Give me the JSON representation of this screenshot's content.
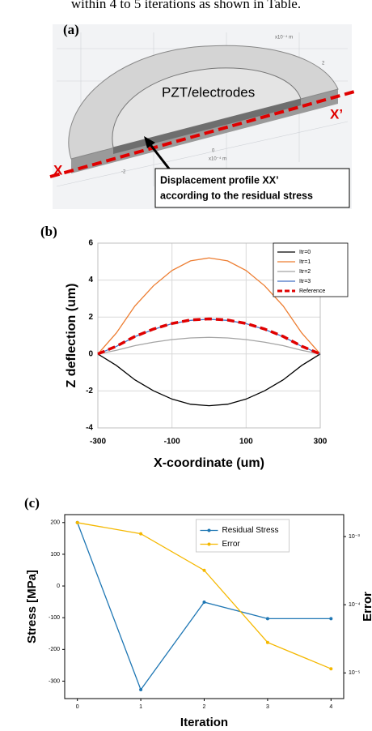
{
  "header_text": "within 4 to 5 iterations as shown in Table.",
  "panel_a": {
    "label": "(a)",
    "pzt_label": "PZT/electrodes",
    "x_left": "X",
    "x_right": "X’",
    "callout": [
      "Displacement profile XX’",
      "according to the residual stress"
    ],
    "axis_texts": [
      "x10⁻⁴ m",
      "x10⁻⁴ m",
      "0",
      "-2",
      "2"
    ]
  },
  "chart_data": [
    {
      "type": "line",
      "panel_label": "(b)",
      "xlabel": "X-coordinate (um)",
      "ylabel": "Z deflection (um)",
      "x": [
        -300,
        -250,
        -200,
        -150,
        -100,
        -50,
        0,
        50,
        100,
        150,
        200,
        250,
        300
      ],
      "xlim": [
        -300,
        300
      ],
      "xticks": [
        -300,
        -100,
        100,
        300
      ],
      "ylim": [
        -4,
        6
      ],
      "yticks": [
        -4,
        -2,
        0,
        2,
        4,
        6
      ],
      "grid": true,
      "legend": "upper right",
      "series": [
        {
          "name": "Itr=0",
          "color": "#000000",
          "values": [
            0,
            -0.62,
            -1.4,
            -1.99,
            -2.44,
            -2.72,
            -2.8,
            -2.72,
            -2.44,
            -1.99,
            -1.4,
            -0.62,
            0
          ]
        },
        {
          "name": "Itr=1",
          "color": "#ed7d31",
          "values": [
            0,
            1.14,
            2.6,
            3.69,
            4.52,
            5.04,
            5.2,
            5.04,
            4.52,
            3.69,
            2.6,
            1.14,
            0
          ]
        },
        {
          "name": "Itr=2",
          "color": "#a5a5a5",
          "values": [
            0,
            0.2,
            0.45,
            0.64,
            0.78,
            0.87,
            0.9,
            0.87,
            0.78,
            0.64,
            0.45,
            0.2,
            0
          ]
        },
        {
          "name": "Itr=3",
          "color": "#4472c4",
          "values": [
            0,
            0.41,
            0.94,
            1.33,
            1.64,
            1.82,
            1.88,
            1.82,
            1.64,
            1.33,
            0.94,
            0.41,
            0
          ]
        },
        {
          "name": "Reference",
          "color": "#e00000",
          "dashed": true,
          "values": [
            0,
            0.42,
            0.95,
            1.35,
            1.65,
            1.84,
            1.9,
            1.84,
            1.65,
            1.35,
            0.95,
            0.42,
            0
          ]
        }
      ]
    },
    {
      "type": "line",
      "panel_label": "(c)",
      "xlabel": "Iteration",
      "ylabel": "Stress [MPa]",
      "y2label": "Error",
      "x": [
        0,
        1,
        2,
        3,
        4
      ],
      "xlim": [
        -0.2,
        4.2
      ],
      "xticks": [
        0,
        1,
        2,
        3,
        4
      ],
      "ylim": [
        -355,
        225
      ],
      "yticks": [
        -300,
        -200,
        -100,
        0,
        100,
        200
      ],
      "y2lim": [
        4.2e-06,
        0.0021
      ],
      "y2log": true,
      "y2ticks": [
        {
          "value": 0.001,
          "label": "10⁻³"
        },
        {
          "value": 0.0001,
          "label": "10⁻⁴"
        },
        {
          "value": 1e-05,
          "label": "10⁻⁵"
        }
      ],
      "grid": false,
      "markers": true,
      "legend": "upper center",
      "series": [
        {
          "name": "Residual Stress",
          "color": "#1f77b4",
          "values": [
            200,
            -327,
            -51,
            -103,
            -103
          ]
        },
        {
          "name": "Error",
          "color": "#f5b800",
          "axis": "y2",
          "values": [
            0.0016,
            0.0011,
            0.00032,
            2.8e-05,
            1.15e-05
          ]
        }
      ]
    }
  ]
}
